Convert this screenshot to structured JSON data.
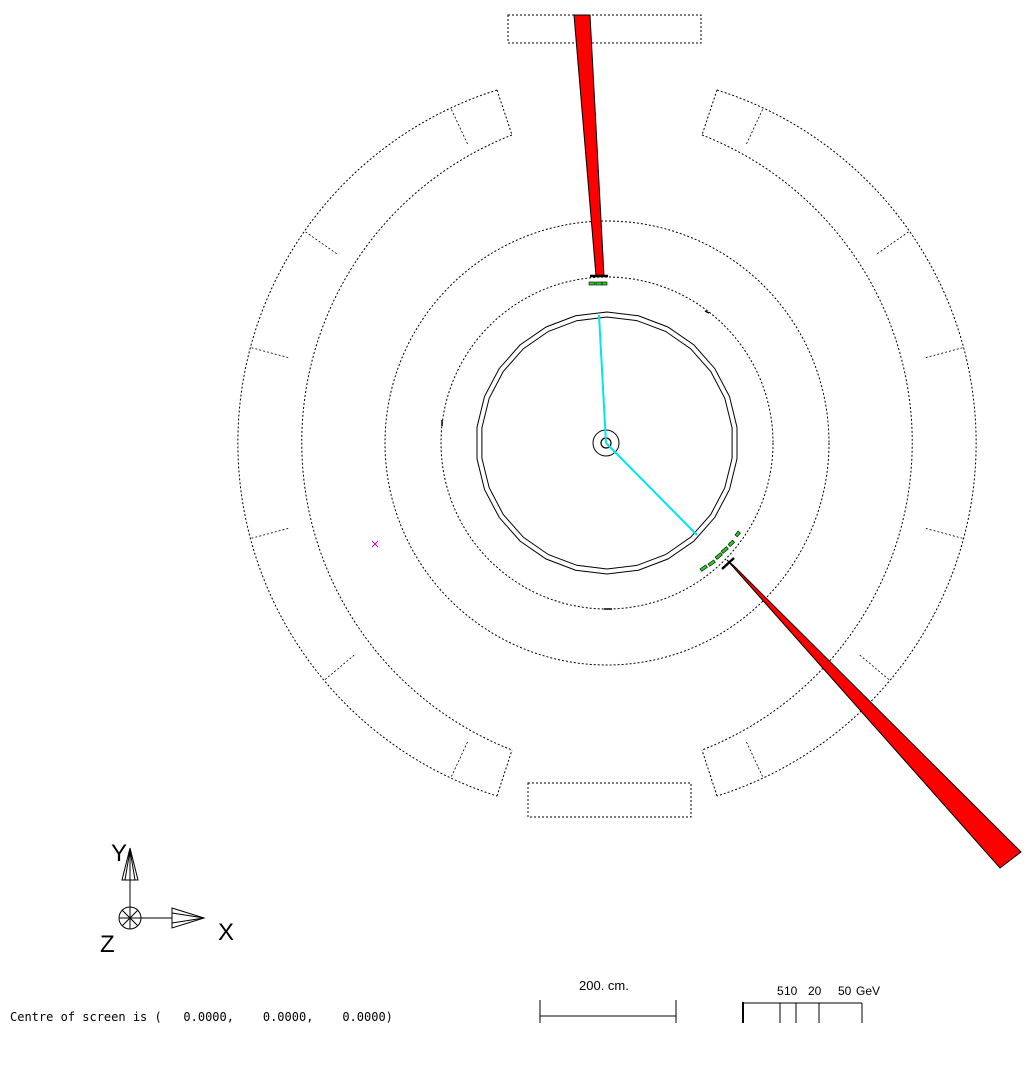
{
  "axes": {
    "y_label": "Y",
    "x_label": "X",
    "z_label": "Z"
  },
  "scale_bar": {
    "length_label": "200. cm."
  },
  "energy_scale": {
    "ticks": [
      "5",
      "10",
      "20",
      "50"
    ],
    "unit": "GeV"
  },
  "status": {
    "centre_text": "Centre of screen is (   0.0000,    0.0000,    0.0000)"
  },
  "colors": {
    "jet": "#ff0000",
    "track": "#00e5ee",
    "hit": "#22cc22",
    "vertex_marker": "#cc00cc",
    "detector": "#000000"
  }
}
